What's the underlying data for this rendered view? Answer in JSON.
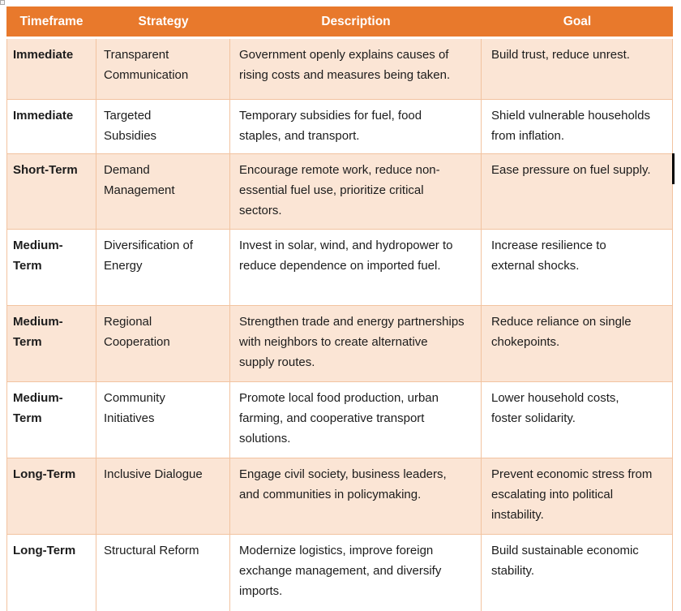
{
  "colors": {
    "header_bg": "#E8792C",
    "header_text": "#FFFFFF",
    "row_alt": "#FBE5D5",
    "row_bg": "#FFFFFF",
    "border": "#F2C3A0",
    "text": "#1C1C1C",
    "caret": "#000000"
  },
  "table": {
    "columns": {
      "timeframe": "Timeframe",
      "strategy": "Strategy",
      "description": "Description",
      "goal": "Goal"
    },
    "rows": [
      {
        "timeframe": "Immediate",
        "strategy": "Transparent Communication",
        "description": "Government openly explains causes of rising costs and measures being taken.",
        "goal": "Build trust, reduce unrest."
      },
      {
        "timeframe": "Immediate",
        "strategy": "Targeted Subsidies",
        "description": "Temporary subsidies for fuel, food staples, and transport.",
        "goal": "Shield vulnerable households from inflation."
      },
      {
        "timeframe": "Short-Term",
        "strategy": "Demand Management",
        "description": "Encourage remote work, reduce non-essential fuel use, prioritize critical sectors.",
        "goal": "Ease pressure on fuel supply."
      },
      {
        "timeframe": "Medium-Term",
        "strategy": "Diversification of Energy",
        "description": "Invest in solar, wind, and hydropower to reduce dependence on imported fuel.",
        "goal": "Increase resilience to external shocks."
      },
      {
        "timeframe": "Medium-Term",
        "strategy": "Regional Cooperation",
        "description": "Strengthen trade and energy partnerships with neighbors to create alternative supply routes.",
        "goal": "Reduce reliance on single chokepoints."
      },
      {
        "timeframe": "Medium-Term",
        "strategy": "Community Initiatives",
        "description": "Promote local food production, urban farming, and cooperative transport solutions.",
        "goal": "Lower household costs, foster solidarity."
      },
      {
        "timeframe": "Long-Term",
        "strategy": "Inclusive Dialogue",
        "description": "Engage civil society, business leaders, and communities in policymaking.",
        "goal": "Prevent economic stress from escalating into political instability."
      },
      {
        "timeframe": "Long-Term",
        "strategy": "Structural Reform",
        "description": "Modernize logistics, improve foreign exchange management, and diversify imports.",
        "goal": "Build sustainable economic stability."
      }
    ]
  }
}
